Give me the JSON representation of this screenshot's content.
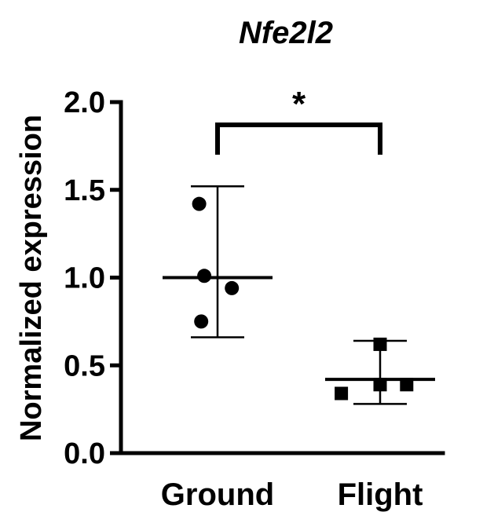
{
  "chart_data": {
    "type": "scatter",
    "title": "Nfe2l2",
    "ylabel": "Normalized expression",
    "xlabel": "",
    "ylim": [
      0,
      2.0
    ],
    "yticks": [
      0.0,
      0.5,
      1.0,
      1.5,
      2.0
    ],
    "ytick_labels": [
      "0.0",
      "0.5",
      "1.0",
      "1.5",
      "2.0"
    ],
    "categories": [
      "Ground",
      "Flight"
    ],
    "grid": false,
    "series": [
      {
        "category": "Ground",
        "marker": "circle",
        "points": [
          {
            "offset": -0.18,
            "y": 1.42
          },
          {
            "offset": -0.13,
            "y": 1.01
          },
          {
            "offset": 0.14,
            "y": 0.94
          },
          {
            "offset": -0.16,
            "y": 0.75
          }
        ],
        "mean": 1.0,
        "error_upper": 1.52,
        "error_lower": 0.66
      },
      {
        "category": "Flight",
        "marker": "square",
        "points": [
          {
            "offset": -0.38,
            "y": 0.34
          },
          {
            "offset": 0.0,
            "y": 0.39
          },
          {
            "offset": 0.26,
            "y": 0.39
          },
          {
            "offset": 0.0,
            "y": 0.62
          }
        ],
        "mean": 0.42,
        "error_upper": 0.64,
        "error_lower": 0.28
      }
    ],
    "significance": {
      "label": "*",
      "between": [
        "Ground",
        "Flight"
      ]
    }
  }
}
